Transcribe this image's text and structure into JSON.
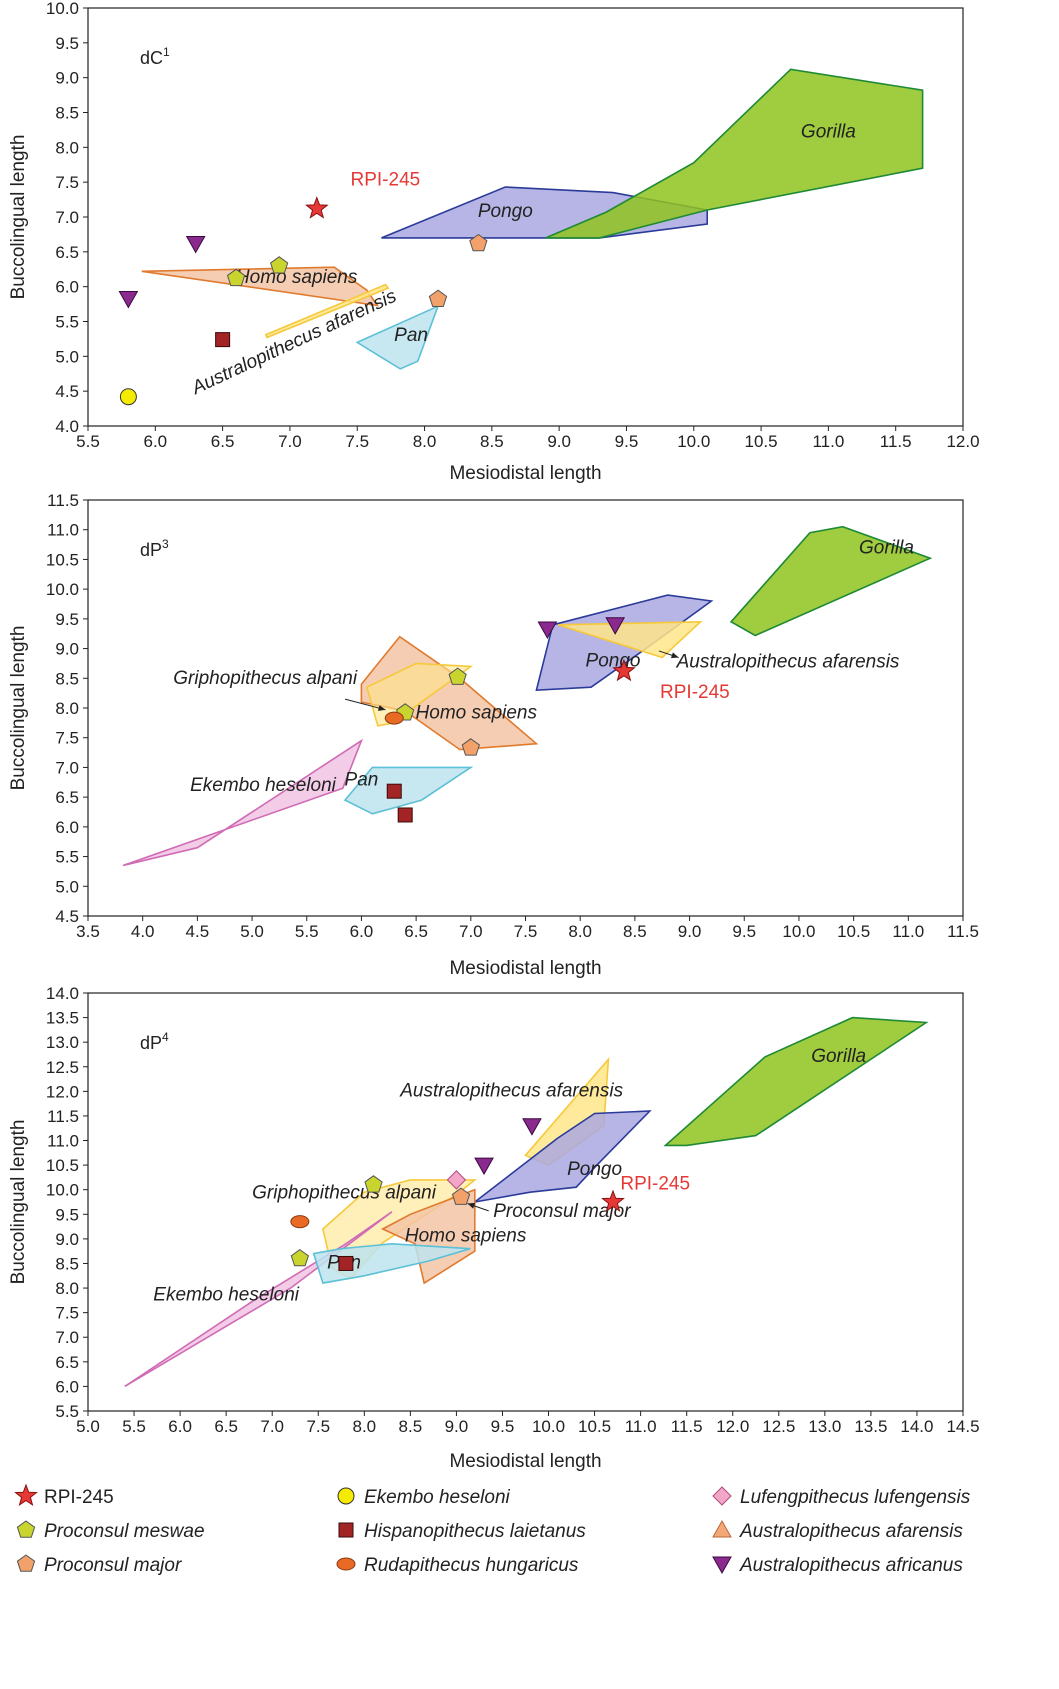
{
  "legend": [
    {
      "label": "RPI-245",
      "italic": false,
      "marker": "star",
      "color": "#e53935"
    },
    {
      "label": "Ekembo heseloni",
      "italic": true,
      "marker": "circle",
      "color": "#f5eb00"
    },
    {
      "label": "Lufengpithecus lufengensis",
      "italic": true,
      "marker": "diamond",
      "color": "#f3a6c8"
    },
    {
      "label": "Proconsul meswae",
      "italic": true,
      "marker": "pentagon",
      "color": "#c9d52e"
    },
    {
      "label": "Hispanopithecus laietanus",
      "italic": true,
      "marker": "square",
      "color": "#a32424"
    },
    {
      "label": "Australopithecus afarensis",
      "italic": true,
      "marker": "triangle-up",
      "color": "#f3a877"
    },
    {
      "label": "Proconsul major",
      "italic": true,
      "marker": "pentagon",
      "color": "#f2a16a"
    },
    {
      "label": "Rudapithecus hungaricus",
      "italic": true,
      "marker": "ellipse",
      "color": "#e86a25"
    },
    {
      "label": "Australopithecus africanus",
      "italic": true,
      "marker": "triangle-down",
      "color": "#8b2a8e"
    }
  ],
  "chart_data": [
    {
      "type": "scatter",
      "panel_label": "dC",
      "panel_sup": "1",
      "xlabel": "Mesiodistal length",
      "ylabel": "Buccolingual length",
      "xlim": [
        5.5,
        12.0
      ],
      "ylim": [
        4.0,
        10.0
      ],
      "xticks": [
        "5.5",
        "6.0",
        "6.5",
        "7.0",
        "7.5",
        "8.0",
        "8.5",
        "9.0",
        "9.5",
        "10.0",
        "10.5",
        "11.0",
        "11.5",
        "12.0"
      ],
      "yticks": [
        "4.0",
        "4.5",
        "5.0",
        "5.5",
        "6.0",
        "6.5",
        "7.0",
        "7.5",
        "8.0",
        "8.5",
        "9.0",
        "9.5",
        "10.0"
      ],
      "regions": [
        {
          "name": "Pongo",
          "label_at": [
            8.6,
            7.0
          ],
          "fill": "#aaa8e0",
          "stroke": "#2b3b9a",
          "points": [
            [
              7.68,
              6.7
            ],
            [
              8.6,
              7.43
            ],
            [
              9.4,
              7.35
            ],
            [
              10.1,
              7.1
            ],
            [
              10.1,
              6.9
            ],
            [
              9.3,
              6.7
            ]
          ]
        },
        {
          "name": "Gorilla",
          "label_at": [
            11.0,
            8.14
          ],
          "fill": "#8fc31f",
          "stroke": "#1f8a35",
          "points": [
            [
              8.9,
              6.7
            ],
            [
              9.35,
              7.07
            ],
            [
              10.0,
              7.78
            ],
            [
              10.72,
              9.12
            ],
            [
              11.7,
              8.82
            ],
            [
              11.7,
              7.7
            ],
            [
              10.1,
              7.1
            ],
            [
              9.3,
              6.7
            ]
          ]
        },
        {
          "name": "Homo sapiens",
          "label_at": [
            7.05,
            6.05
          ],
          "fill": "#f3c4a5",
          "stroke": "#e07a2e",
          "points": [
            [
              5.9,
              6.22
            ],
            [
              7.33,
              6.28
            ],
            [
              7.57,
              5.95
            ],
            [
              7.65,
              5.73
            ]
          ]
        },
        {
          "name": "Australopithecus afarensis",
          "label_at": [
            7.05,
            5.13
          ],
          "rotate": -25,
          "fill": "#ffe58a",
          "stroke": "#f5c93a",
          "points": [
            [
              6.82,
              5.31
            ],
            [
              7.71,
              6.03
            ],
            [
              7.73,
              5.98
            ],
            [
              6.83,
              5.27
            ]
          ]
        },
        {
          "name": "Pan",
          "label_at": [
            7.9,
            5.22
          ],
          "fill": "#bde3ee",
          "stroke": "#5cc0d6",
          "points": [
            [
              7.5,
              5.2
            ],
            [
              8.1,
              5.72
            ],
            [
              7.95,
              4.93
            ],
            [
              7.82,
              4.82
            ]
          ]
        }
      ],
      "points": [
        {
          "species": "RPI-245",
          "marker": "star",
          "x": 7.2,
          "y": 7.12,
          "label": "RPI-245",
          "label_at": [
            7.45,
            7.45
          ]
        },
        {
          "species": "Australopithecus africanus",
          "marker": "triangle-down",
          "x": 6.3,
          "y": 6.62
        },
        {
          "species": "Australopithecus africanus",
          "marker": "triangle-down",
          "x": 5.8,
          "y": 5.83
        },
        {
          "species": "Proconsul meswae",
          "marker": "pentagon",
          "x": 6.6,
          "y": 6.12
        },
        {
          "species": "Proconsul meswae",
          "marker": "pentagon",
          "x": 6.92,
          "y": 6.3
        },
        {
          "species": "Proconsul major",
          "marker": "pentagon",
          "x": 8.4,
          "y": 6.62
        },
        {
          "species": "Proconsul major",
          "marker": "pentagon",
          "x": 8.1,
          "y": 5.82
        },
        {
          "species": "Hispanopithecus laietanus",
          "marker": "square",
          "x": 6.5,
          "y": 5.24
        },
        {
          "species": "Ekembo heseloni",
          "marker": "circle",
          "x": 5.8,
          "y": 4.42
        }
      ],
      "arrows": []
    },
    {
      "type": "scatter",
      "panel_label": "dP",
      "panel_sup": "3",
      "xlabel": "Mesiodistal length",
      "ylabel": "Buccolingual length",
      "xlim": [
        3.5,
        11.5
      ],
      "ylim": [
        4.5,
        11.5
      ],
      "xticks": [
        "3.5",
        "4.0",
        "4.5",
        "5.0",
        "5.5",
        "6.0",
        "6.5",
        "7.0",
        "7.5",
        "8.0",
        "8.5",
        "9.0",
        "9.5",
        "10.0",
        "10.5",
        "11.0",
        "11.5"
      ],
      "yticks": [
        "4.5",
        "5.0",
        "5.5",
        "6.0",
        "6.5",
        "7.0",
        "7.5",
        "8.0",
        "8.5",
        "9.0",
        "9.5",
        "10.0",
        "10.5",
        "11.0",
        "11.5"
      ],
      "regions": [
        {
          "name": "Gorilla",
          "label_at": [
            10.8,
            10.6
          ],
          "fill": "#8fc31f",
          "stroke": "#1f8a35",
          "points": [
            [
              9.38,
              9.45
            ],
            [
              10.1,
              10.95
            ],
            [
              10.4,
              11.05
            ],
            [
              11.2,
              10.52
            ],
            [
              9.6,
              9.22
            ]
          ]
        },
        {
          "name": "Pongo",
          "label_at": [
            8.3,
            8.7
          ],
          "fill": "#aaa8e0",
          "stroke": "#2b3b9a",
          "points": [
            [
              7.6,
              8.3
            ],
            [
              7.75,
              9.4
            ],
            [
              8.8,
              9.9
            ],
            [
              9.2,
              9.8
            ],
            [
              8.6,
              9.0
            ],
            [
              8.1,
              8.35
            ]
          ]
        },
        {
          "name": "Australopithecus afarensis",
          "label_at": [
            9.9,
            8.68
          ],
          "fill": "#ffe58a",
          "stroke": "#f5c93a",
          "points": [
            [
              7.8,
              9.4
            ],
            [
              9.1,
              9.45
            ],
            [
              8.75,
              8.85
            ]
          ]
        },
        {
          "name": "Homo sapiens",
          "label_at": [
            7.05,
            7.82
          ],
          "fill": "#f3c4a5",
          "stroke": "#e07a2e",
          "points": [
            [
              6.0,
              8.4
            ],
            [
              6.35,
              9.2
            ],
            [
              6.9,
              8.5
            ],
            [
              7.6,
              7.4
            ],
            [
              6.9,
              7.3
            ],
            [
              6.4,
              7.95
            ],
            [
              6.0,
              8.1
            ]
          ]
        },
        {
          "name": "Griphopithecus alpani",
          "label_at": [
            5.12,
            8.4
          ],
          "fill": "#ffe58a",
          "stroke": "#f5c93a",
          "fill_opacity": 0.6,
          "points": [
            [
              6.05,
              8.35
            ],
            [
              6.5,
              8.75
            ],
            [
              7.0,
              8.7
            ],
            [
              6.4,
              7.9
            ],
            [
              6.3,
              7.75
            ],
            [
              6.15,
              7.7
            ]
          ]
        },
        {
          "name": "Ekembo heseloni",
          "label_at": [
            5.1,
            6.6
          ],
          "fill": "#f1c3e3",
          "stroke": "#d06bb5",
          "points": [
            [
              3.82,
              5.35
            ],
            [
              5.83,
              6.65
            ],
            [
              6.0,
              7.45
            ],
            [
              4.5,
              5.65
            ]
          ]
        },
        {
          "name": "Pan",
          "label_at": [
            6.0,
            6.7
          ],
          "fill": "#bde3ee",
          "stroke": "#5cc0d6",
          "points": [
            [
              5.85,
              6.45
            ],
            [
              6.1,
              7.0
            ],
            [
              7.0,
              7.0
            ],
            [
              6.55,
              6.45
            ],
            [
              6.1,
              6.22
            ]
          ]
        }
      ],
      "points": [
        {
          "species": "Australopithecus africanus",
          "marker": "triangle-down",
          "x": 7.7,
          "y": 9.33
        },
        {
          "species": "Australopithecus africanus",
          "marker": "triangle-down",
          "x": 8.32,
          "y": 9.4
        },
        {
          "species": "RPI-245",
          "marker": "star",
          "x": 8.4,
          "y": 8.62,
          "label": "RPI-245",
          "label_at": [
            8.73,
            8.17
          ]
        },
        {
          "species": "Proconsul meswae",
          "marker": "pentagon",
          "x": 6.88,
          "y": 8.52
        },
        {
          "species": "Proconsul meswae",
          "marker": "pentagon",
          "x": 6.4,
          "y": 7.92
        },
        {
          "species": "Rudapithecus hungaricus",
          "marker": "ellipse",
          "x": 6.3,
          "y": 7.83
        },
        {
          "species": "Proconsul major",
          "marker": "pentagon",
          "x": 7.0,
          "y": 7.33
        },
        {
          "species": "Hispanopithecus laietanus",
          "marker": "square",
          "x": 6.3,
          "y": 6.6
        },
        {
          "species": "Hispanopithecus laietanus",
          "marker": "square",
          "x": 6.4,
          "y": 6.2
        }
      ],
      "arrows": [
        {
          "from": [
            5.85,
            8.15
          ],
          "to": [
            6.22,
            7.97
          ]
        },
        {
          "from": [
            8.72,
            8.96
          ],
          "to": [
            8.9,
            8.85
          ]
        }
      ]
    },
    {
      "type": "scatter",
      "panel_label": "dP",
      "panel_sup": "4",
      "xlabel": "Mesiodistal length",
      "ylabel": "Buccolingual length",
      "xlim": [
        5.0,
        14.5
      ],
      "ylim": [
        5.5,
        14.0
      ],
      "xticks": [
        "5.0",
        "5.5",
        "6.0",
        "6.5",
        "7.0",
        "7.5",
        "8.0",
        "8.5",
        "9.0",
        "9.5",
        "10.0",
        "10.5",
        "11.0",
        "11.5",
        "12.0",
        "12.5",
        "13.0",
        "13.5",
        "14.0",
        "14.5"
      ],
      "yticks": [
        "5.5",
        "6.0",
        "6.5",
        "7.0",
        "7.5",
        "8.0",
        "8.5",
        "9.0",
        "9.5",
        "10.0",
        "10.5",
        "11.0",
        "11.5",
        "12.0",
        "12.5",
        "13.0",
        "13.5",
        "14.0"
      ],
      "regions": [
        {
          "name": "Gorilla",
          "label_at": [
            13.15,
            12.6
          ],
          "fill": "#8fc31f",
          "stroke": "#1f8a35",
          "points": [
            [
              11.27,
              10.9
            ],
            [
              12.35,
              12.7
            ],
            [
              13.3,
              13.5
            ],
            [
              14.1,
              13.4
            ],
            [
              12.25,
              11.1
            ],
            [
              11.5,
              10.9
            ]
          ]
        },
        {
          "name": "Australopithecus afarensis",
          "label_at": [
            9.6,
            11.9
          ],
          "fill": "#ffe58a",
          "stroke": "#f5c93a",
          "points": [
            [
              9.75,
              10.7
            ],
            [
              10.65,
              12.65
            ],
            [
              10.6,
              11.3
            ],
            [
              10.0,
              10.5
            ]
          ]
        },
        {
          "name": "Pongo",
          "label_at": [
            10.5,
            10.3
          ],
          "fill": "#aaa8e0",
          "stroke": "#2b3b9a",
          "points": [
            [
              9.2,
              9.75
            ],
            [
              10.1,
              11.05
            ],
            [
              10.5,
              11.55
            ],
            [
              11.1,
              11.6
            ],
            [
              10.55,
              10.55
            ],
            [
              10.3,
              10.05
            ],
            [
              9.8,
              9.95
            ]
          ]
        },
        {
          "name": "Griphopithecus alpani",
          "label_at": [
            7.78,
            9.82
          ],
          "fill": "#ffe58a",
          "stroke": "#f5c93a",
          "fill_opacity": 0.6,
          "points": [
            [
              7.55,
              9.2
            ],
            [
              8.0,
              9.95
            ],
            [
              8.5,
              10.2
            ],
            [
              9.2,
              10.2
            ],
            [
              9.0,
              9.9
            ],
            [
              8.2,
              8.92
            ],
            [
              7.85,
              8.2
            ],
            [
              7.65,
              8.4
            ]
          ]
        },
        {
          "name": "Homo sapiens",
          "label_at": [
            9.1,
            8.95
          ],
          "fill": "#f3c4a5",
          "stroke": "#e07a2e",
          "points": [
            [
              8.2,
              9.2
            ],
            [
              8.5,
              9.5
            ],
            [
              9.2,
              10.0
            ],
            [
              9.2,
              8.75
            ],
            [
              8.65,
              8.1
            ],
            [
              8.55,
              8.9
            ]
          ]
        },
        {
          "name": "Ekembo heseloni",
          "label_at": [
            6.5,
            7.75
          ],
          "fill": "#f1c3e3",
          "stroke": "#d06bb5",
          "points": [
            [
              5.4,
              6.0
            ],
            [
              7.2,
              8.0
            ],
            [
              8.3,
              9.55
            ],
            [
              7.8,
              8.9
            ],
            [
              6.8,
              7.75
            ]
          ]
        },
        {
          "name": "Pan",
          "label_at": [
            7.78,
            8.4
          ],
          "fill": "#bde3ee",
          "stroke": "#5cc0d6",
          "points": [
            [
              7.45,
              8.7
            ],
            [
              7.75,
              8.8
            ],
            [
              8.3,
              8.9
            ],
            [
              9.15,
              8.8
            ],
            [
              8.7,
              8.55
            ],
            [
              8.0,
              8.25
            ],
            [
              7.55,
              8.1
            ]
          ]
        }
      ],
      "points": [
        {
          "species": "Australopithecus africanus",
          "marker": "triangle-down",
          "x": 9.82,
          "y": 11.3
        },
        {
          "species": "Australopithecus africanus",
          "marker": "triangle-down",
          "x": 9.3,
          "y": 10.5
        },
        {
          "species": "Lufengpithecus lufengensis",
          "marker": "diamond",
          "x": 9.0,
          "y": 10.2
        },
        {
          "species": "Proconsul major",
          "marker": "pentagon",
          "x": 9.05,
          "y": 9.85
        },
        {
          "species": "RPI-245",
          "marker": "star",
          "x": 10.7,
          "y": 9.75,
          "label": "RPI-245",
          "label_at": [
            10.78,
            10.0
          ]
        },
        {
          "species": "Proconsul meswae",
          "marker": "pentagon",
          "x": 8.1,
          "y": 10.1
        },
        {
          "species": "Proconsul meswae",
          "marker": "pentagon",
          "x": 7.3,
          "y": 8.6
        },
        {
          "species": "Rudapithecus hungaricus",
          "marker": "ellipse",
          "x": 7.3,
          "y": 9.35
        },
        {
          "species": "Hispanopithecus laietanus",
          "marker": "square",
          "x": 7.8,
          "y": 8.5
        }
      ],
      "arrows": [
        {
          "from": [
            9.35,
            9.57
          ],
          "to": [
            9.12,
            9.72
          ]
        }
      ],
      "extra_labels": [
        {
          "text": "Proconsul major",
          "at": [
            9.4,
            9.45
          ]
        }
      ]
    }
  ]
}
